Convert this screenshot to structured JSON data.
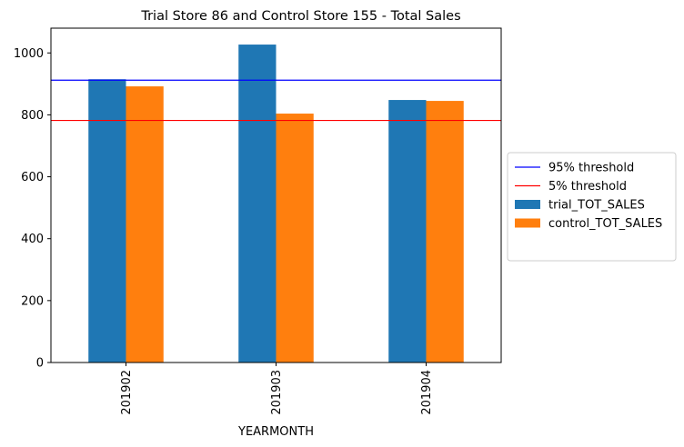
{
  "chart_data": {
    "type": "bar",
    "title": "Trial Store 86 and Control Store 155 - Total Sales",
    "xlabel": "YEARMONTH",
    "ylabel": "",
    "categories": [
      "201902",
      "201903",
      "201904"
    ],
    "ylim": [
      0,
      1080
    ],
    "yticks": [
      0,
      200,
      400,
      600,
      800,
      1000
    ],
    "series": [
      {
        "name": "trial_TOT_SALES",
        "color": "#1f77b4",
        "values": [
          915,
          1027,
          848
        ]
      },
      {
        "name": "control_TOT_SALES",
        "color": "#ff7f0e",
        "values": [
          892,
          804,
          845
        ]
      }
    ],
    "reference_lines": [
      {
        "name": "95% threshold",
        "color": "#0000ff",
        "value": 912
      },
      {
        "name": "5% threshold",
        "color": "#ff0000",
        "value": 782
      }
    ],
    "legend_position": "right",
    "grid": false
  }
}
